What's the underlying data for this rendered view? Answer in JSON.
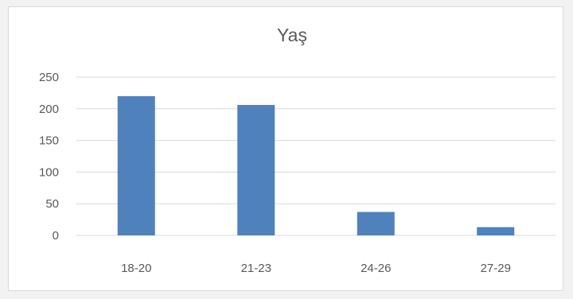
{
  "chart_data": {
    "type": "bar",
    "title": "Yaş",
    "categories": [
      "18-20",
      "21-23",
      "24-26",
      "27-29"
    ],
    "values": [
      220,
      206,
      37,
      13
    ],
    "ylim": [
      0,
      250
    ],
    "yticks": [
      0,
      50,
      100,
      150,
      200,
      250
    ],
    "grid": true,
    "legend": "none",
    "bar_color": "#4f81bd",
    "grid_color": "#d9d9d9"
  }
}
